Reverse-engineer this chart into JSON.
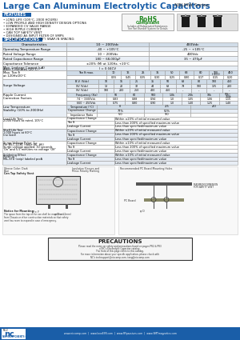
{
  "title": "Large Can Aluminum Electrolytic Capacitors",
  "series": "NRLMW Series",
  "bg_color": "#ffffff",
  "title_color": "#1a5ea8",
  "header_color": "#1a5ea8",
  "features_title": "FEATURES",
  "features": [
    "LONG LIFE (105°C, 2000 HOURS)",
    "LOW PROFILE AND HIGH DENSITY DESIGN OPTIONS",
    "EXPANDED CV VALUE RANGE",
    "HIGH RIPPLE CURRENT",
    "CAN TOP SAFETY VENT",
    "DESIGNED AS INPUT FILTER OF SMPS",
    "STANDARD 10mm (.400\") SNAP-IN SPACING"
  ],
  "specs_title": "SPECIFICATIONS",
  "table_header_bg": "#d0dce8",
  "table_row_bg1": "#ffffff",
  "table_row_bg2": "#e8eef5",
  "footer_bg": "#1a5ea8",
  "footer_text": "www.niccomp.com  |  www.loveESR.com  |  www.RFpassives.com  |  www.SMTmagnetics.com",
  "page_num": "762"
}
